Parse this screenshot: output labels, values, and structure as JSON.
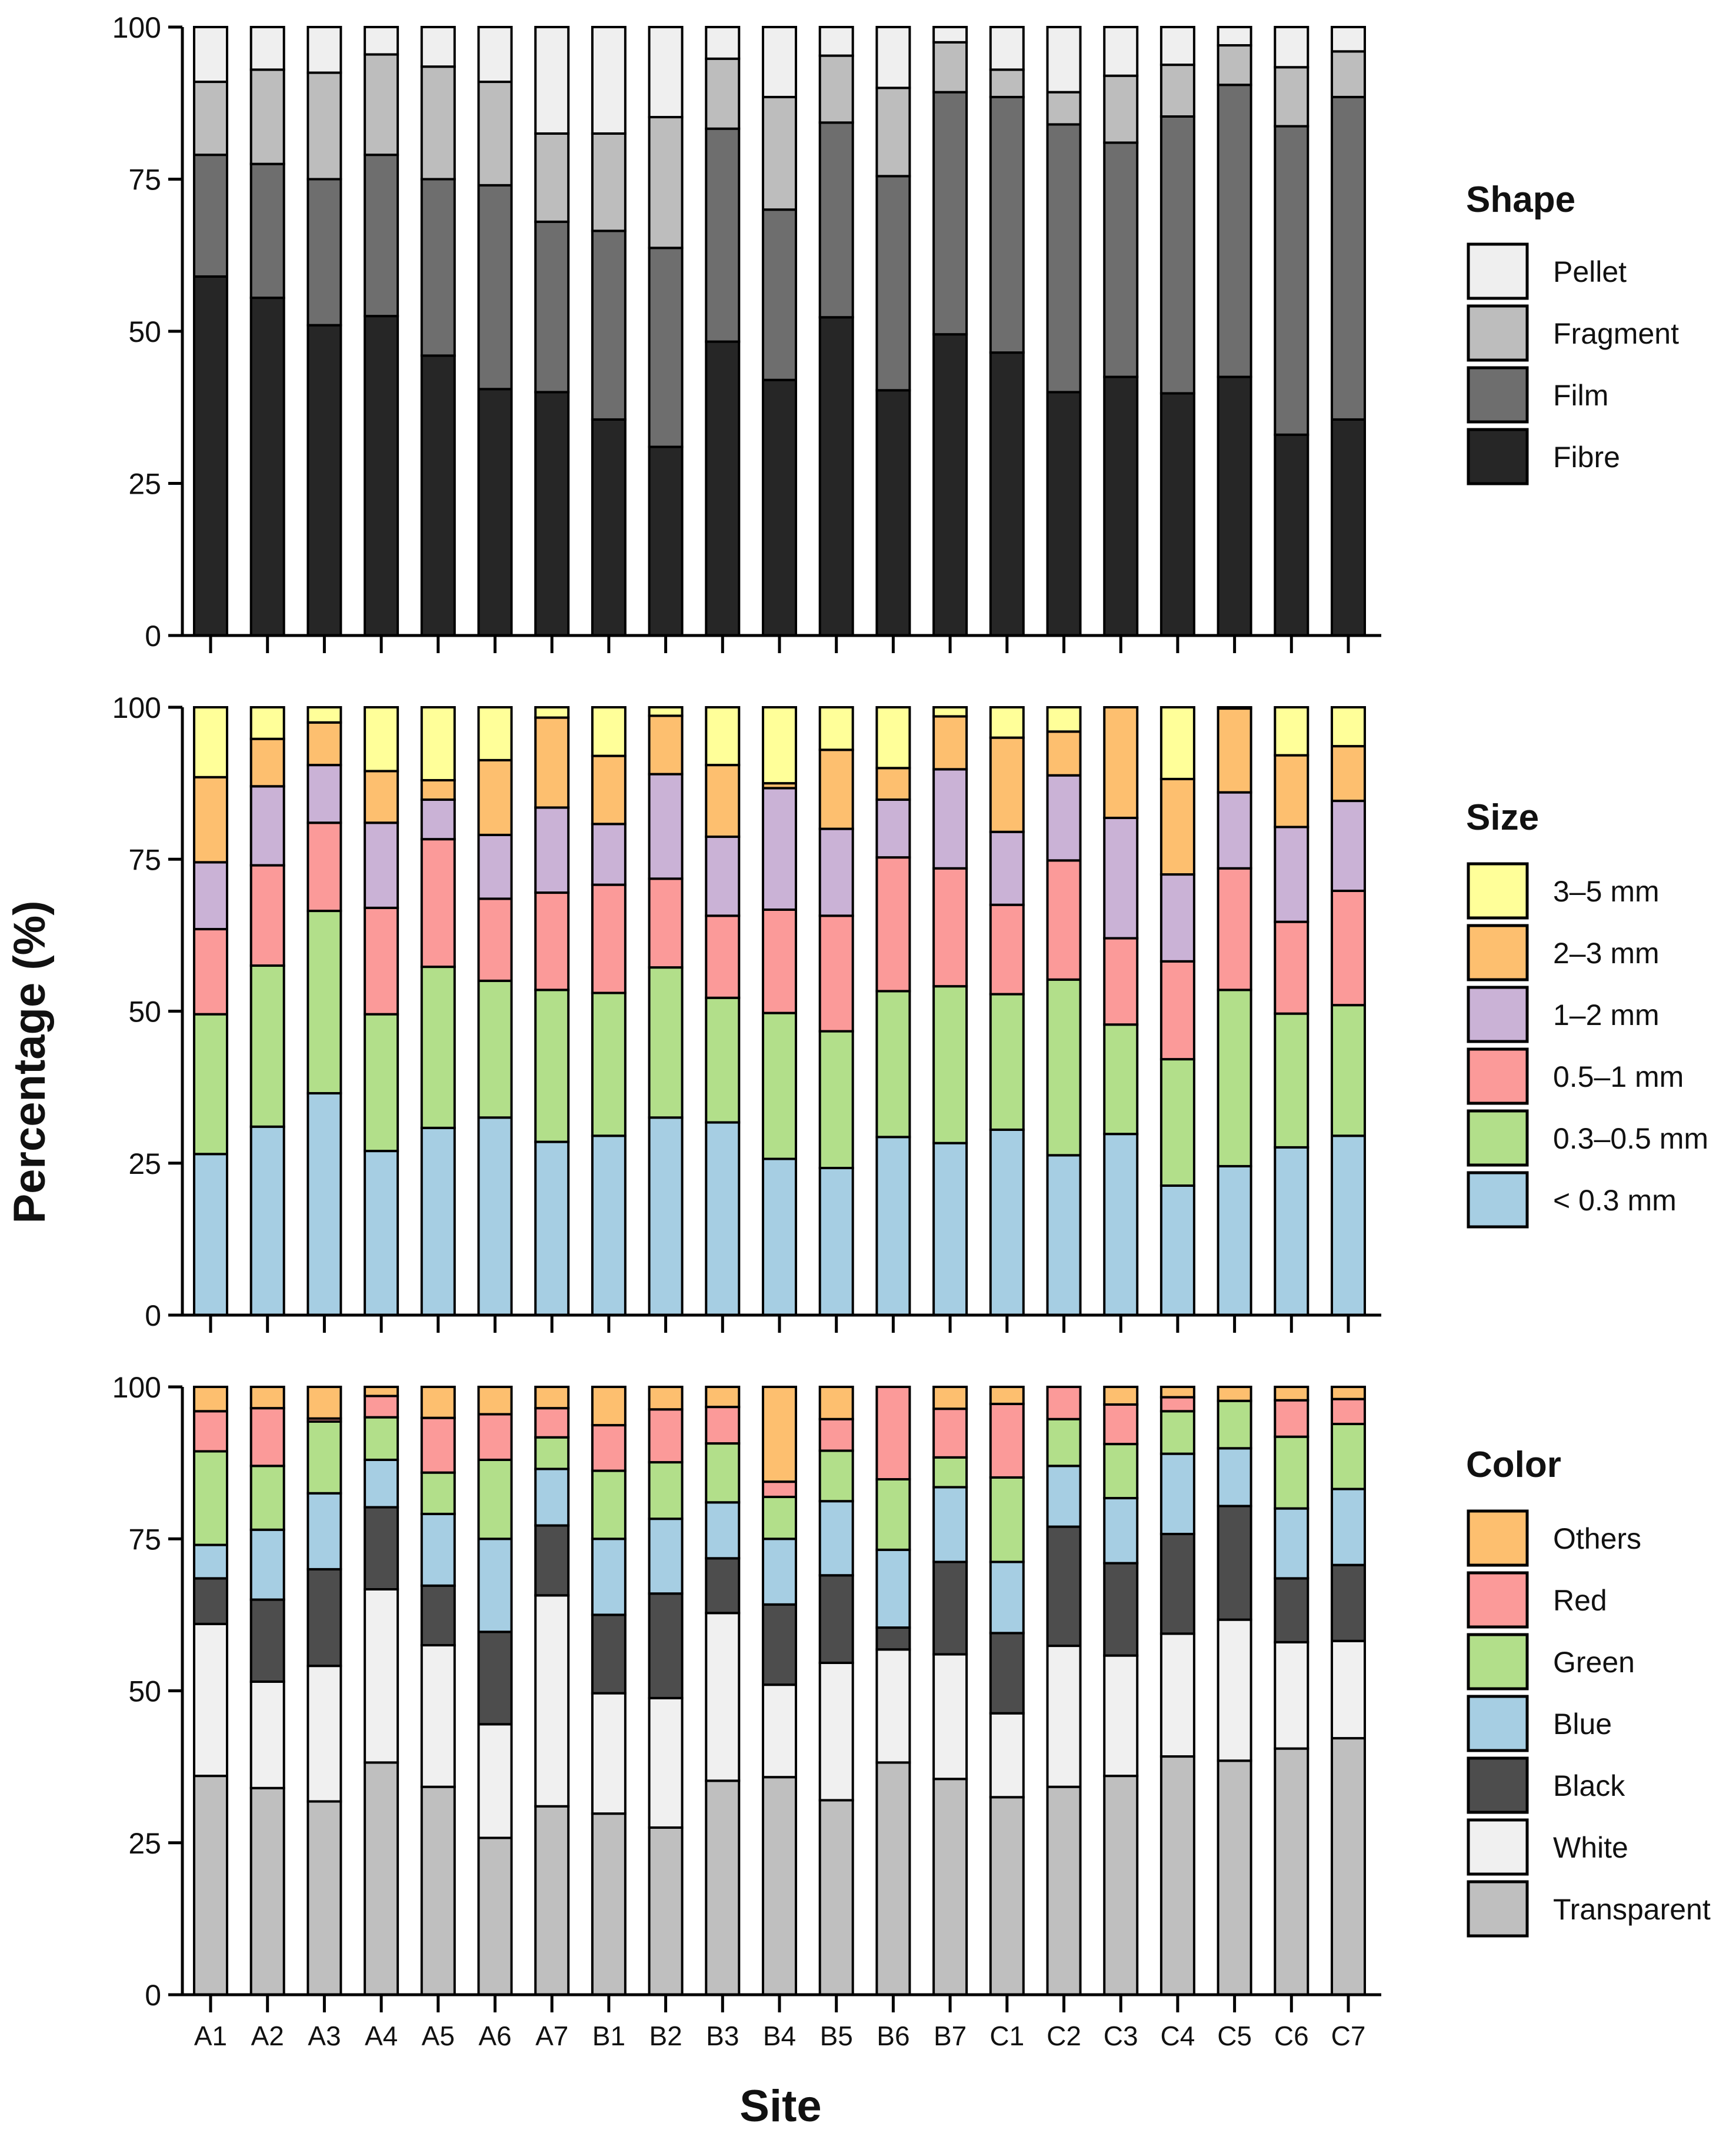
{
  "chart_data": {
    "type": "bar",
    "stacked": true,
    "ylabel": "Percentage (%)",
    "xlabel": "Site",
    "ylim": [
      0,
      100
    ],
    "yticks": [
      "0",
      "25",
      "50",
      "75",
      "100"
    ],
    "categories": [
      "A1",
      "A2",
      "A3",
      "A4",
      "A5",
      "A6",
      "A7",
      "B1",
      "B2",
      "B3",
      "B4",
      "B5",
      "B6",
      "B7",
      "C1",
      "C2",
      "C3",
      "C4",
      "C5",
      "C6",
      "C7"
    ],
    "panels": [
      {
        "legend_title": "Shape",
        "series": [
          {
            "name": "Fibre",
            "color": "#262626",
            "values": [
              59,
              55.5,
              51,
              52.5,
              46,
              40.5,
              40,
              35.5,
              31,
              48.3,
              42,
              52.3,
              40.3,
              49.5,
              46.5,
              40,
              42.5,
              39.8,
              42.5,
              33,
              35.5
            ]
          },
          {
            "name": "Film",
            "color": "#6e6e6e",
            "values": [
              20,
              22,
              24,
              26.5,
              29,
              33.5,
              28,
              31,
              32.7,
              35,
              28,
              32,
              35.2,
              39.8,
              42,
              44,
              38.5,
              45.5,
              48,
              50.7,
              53
            ]
          },
          {
            "name": "Fragment",
            "color": "#bdbdbd",
            "values": [
              12,
              15.5,
              17.5,
              16.5,
              18.5,
              17,
              14.5,
              16,
              21.5,
              11.5,
              18.5,
              11,
              14.5,
              8.2,
              4.5,
              5.3,
              11,
              8.5,
              6.5,
              9.7,
              7.5
            ]
          },
          {
            "name": "Pellet",
            "color": "#efefef",
            "values": [
              9,
              7,
              7.5,
              4.5,
              6.5,
              9,
              17.5,
              17.5,
              14.8,
              5.2,
              11.5,
              4.7,
              10,
              2.5,
              7,
              10.7,
              8,
              6.2,
              3,
              6.6,
              4
            ]
          }
        ]
      },
      {
        "legend_title": "Size",
        "series": [
          {
            "name": "< 0.3 mm",
            "color": "#a6cee3",
            "values": [
              26.5,
              31,
              36.5,
              27,
              30.8,
              32.5,
              28.5,
              29.5,
              32.5,
              31.7,
              25.7,
              24.2,
              29.3,
              28.3,
              30.5,
              26.3,
              29.8,
              21.3,
              24.5,
              27.6,
              29.5
            ]
          },
          {
            "name": "0.3–0.5 mm",
            "color": "#b2df8a",
            "values": [
              23,
              26.5,
              30,
              22.5,
              26.5,
              22.5,
              25,
              23.5,
              24.7,
              20.5,
              24,
              22.5,
              24,
              25.8,
              22.3,
              28.9,
              18,
              20.8,
              29,
              22,
              21.5
            ]
          },
          {
            "name": "0.5–1 mm",
            "color": "#fb9a99",
            "values": [
              14,
              16.5,
              14.5,
              17.5,
              21,
              13.5,
              16,
              17.8,
              14.6,
              13.5,
              17,
              19,
              22,
              19.4,
              14.7,
              19.6,
              14.2,
              16.1,
              20,
              15.1,
              18.8
            ]
          },
          {
            "name": "1–2 mm",
            "color": "#cab2d6",
            "values": [
              11,
              13,
              9.5,
              14,
              6.5,
              10.5,
              14,
              10,
              17.2,
              13,
              20,
              14.3,
              9.5,
              16.3,
              12,
              14,
              19.8,
              14.3,
              12.5,
              15.6,
              14.8
            ]
          },
          {
            "name": "2–3 mm",
            "color": "#fdbf6f",
            "values": [
              14,
              7.8,
              7,
              8.5,
              3.2,
              12.3,
              14.8,
              11.2,
              9.6,
              11.8,
              0.8,
              13,
              5.2,
              8.7,
              15.5,
              7.2,
              18.2,
              15.7,
              13.8,
              11.8,
              9
            ]
          },
          {
            "name": "3–5 mm",
            "color": "#ffff99",
            "values": [
              11.5,
              5.2,
              2.5,
              10.5,
              12,
              8.7,
              1.7,
              8,
              1.4,
              9.5,
              12.5,
              7,
              10,
              1.5,
              5,
              4,
              0,
              11.8,
              0.2,
              7.9,
              6.4
            ]
          }
        ]
      },
      {
        "legend_title": "Color",
        "series": [
          {
            "name": "Transparent",
            "color": "#bfbfbf",
            "values": [
              36,
              34,
              31.8,
              38.2,
              34.2,
              25.8,
              31,
              29.8,
              27.5,
              35.2,
              35.8,
              32,
              38.2,
              35.5,
              32.5,
              34.2,
              36,
              39.2,
              38.5,
              40.5,
              42.2
            ]
          },
          {
            "name": "White",
            "color": "#f0f0f0",
            "values": [
              25,
              17.5,
              22.3,
              28.5,
              23.3,
              18.7,
              34.7,
              19.8,
              21.3,
              27.6,
              15.2,
              22.6,
              18.6,
              20.5,
              13.8,
              23.2,
              19.8,
              20.2,
              23.2,
              17.5,
              16
            ]
          },
          {
            "name": "Black",
            "color": "#4d4d4d",
            "values": [
              7.5,
              13.5,
              15.9,
              13.5,
              9.8,
              15.2,
              11.5,
              12.9,
              17.2,
              9,
              13.2,
              14.4,
              3.6,
              15.2,
              13.2,
              19.6,
              15.2,
              16.4,
              18.7,
              10.5,
              12.5
            ]
          },
          {
            "name": "Blue",
            "color": "#a6cee3",
            "values": [
              5.5,
              11.5,
              12.5,
              7.8,
              11.8,
              15.3,
              9.3,
              12.5,
              12.3,
              9.2,
              10.8,
              12.2,
              12.8,
              12.3,
              11.7,
              10,
              10.7,
              13.2,
              9.5,
              11.5,
              12.5
            ]
          },
          {
            "name": "Green",
            "color": "#b2df8a",
            "values": [
              15.4,
              10.5,
              11.8,
              7,
              6.8,
              13,
              5.2,
              11.2,
              9.3,
              9.7,
              6.9,
              8.3,
              11.6,
              4.9,
              13.9,
              7.7,
              8.9,
              7,
              7.8,
              11.8,
              10.7
            ]
          },
          {
            "name": "Red",
            "color": "#fb9a99",
            "values": [
              6.6,
              9.5,
              0.5,
              3.5,
              9,
              7.5,
              4.8,
              7.5,
              8.7,
              6,
              2.5,
              5.2,
              15.2,
              8,
              12.1,
              5.3,
              6.5,
              2.3,
              0,
              6,
              4.1
            ]
          },
          {
            "name": "Others",
            "color": "#fdbf6f",
            "values": [
              4,
              3.5,
              5.2,
              1.5,
              5.1,
              4.5,
              3.5,
              6.3,
              3.7,
              3.3,
              15.6,
              5.3,
              0,
              3.6,
              2.8,
              0,
              2.9,
              1.7,
              2.3,
              2.2,
              2
            ]
          }
        ]
      }
    ]
  }
}
